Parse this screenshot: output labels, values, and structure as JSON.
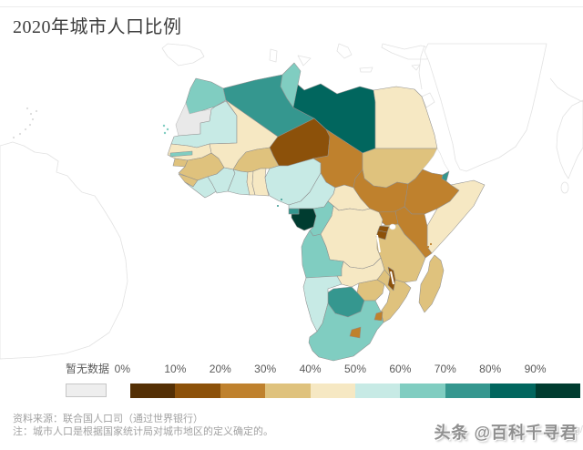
{
  "page": {
    "title": "2020年城市人口比例"
  },
  "legend": {
    "no_data_label": "暂无数据",
    "no_data_color": "#e9e9e9",
    "no_data_swatch_fill": "#eeeeee",
    "ticks": [
      "0%",
      "10%",
      "20%",
      "30%",
      "40%",
      "50%",
      "60%",
      "70%",
      "80%",
      "90%"
    ]
  },
  "footer": {
    "source": "资料来源：联合国人口司（通过世界银行）",
    "note": "注：城市人口是根据国家统计局对城市地区的定义确定的。"
  },
  "watermark": {
    "text": "头条 @百科千寻君",
    "fragment": "rg/"
  },
  "chart_data": {
    "type": "choropleth",
    "title": "2020年城市人口比例",
    "region": "Africa (world basemap, non-African countries unfilled)",
    "metric": "share of population living in urban areas, 2020",
    "legend_position": "bottom",
    "bins": [
      {
        "range": "0-10%",
        "color": "#543005"
      },
      {
        "range": "10-20%",
        "color": "#8c510a"
      },
      {
        "range": "20-30%",
        "color": "#bf812d"
      },
      {
        "range": "30-40%",
        "color": "#dfc27d"
      },
      {
        "range": "40-50%",
        "color": "#f6e8c3"
      },
      {
        "range": "50-60%",
        "color": "#c7eae5"
      },
      {
        "range": "60-70%",
        "color": "#80cdc1"
      },
      {
        "range": "70-80%",
        "color": "#35978f"
      },
      {
        "range": "80-90%",
        "color": "#01665e"
      },
      {
        "range": "90-100%",
        "color": "#003c30"
      }
    ],
    "countries": [
      {
        "name": "Morocco",
        "urban_share": "60-70%"
      },
      {
        "name": "Algeria",
        "urban_share": "70-80%"
      },
      {
        "name": "Tunisia",
        "urban_share": "60-70%"
      },
      {
        "name": "Libya",
        "urban_share": "80-90%"
      },
      {
        "name": "Egypt",
        "urban_share": "40-50%"
      },
      {
        "name": "Western Sahara",
        "urban_share": "no data"
      },
      {
        "name": "Mauritania",
        "urban_share": "50-60%"
      },
      {
        "name": "Mali",
        "urban_share": "40-50%"
      },
      {
        "name": "Niger",
        "urban_share": "10-20%"
      },
      {
        "name": "Chad",
        "urban_share": "20-30%"
      },
      {
        "name": "Sudan",
        "urban_share": "30-40%"
      },
      {
        "name": "Eritrea",
        "urban_share": "no data"
      },
      {
        "name": "Senegal",
        "urban_share": "40-50%"
      },
      {
        "name": "Gambia",
        "urban_share": "60-70%"
      },
      {
        "name": "Guinea-Bissau",
        "urban_share": "30-40%"
      },
      {
        "name": "Guinea",
        "urban_share": "30-40%"
      },
      {
        "name": "Sierra Leone",
        "urban_share": "30-40%"
      },
      {
        "name": "Liberia",
        "urban_share": "50-60%"
      },
      {
        "name": "Cote d'Ivoire",
        "urban_share": "50-60%"
      },
      {
        "name": "Burkina Faso",
        "urban_share": "30-40%"
      },
      {
        "name": "Ghana",
        "urban_share": "50-60%"
      },
      {
        "name": "Togo",
        "urban_share": "40-50%"
      },
      {
        "name": "Benin",
        "urban_share": "40-50%"
      },
      {
        "name": "Nigeria",
        "urban_share": "50-60%"
      },
      {
        "name": "Cameroon",
        "urban_share": "50-60%"
      },
      {
        "name": "Central African Republic",
        "urban_share": "40-50%"
      },
      {
        "name": "South Sudan",
        "urban_share": "20-30%"
      },
      {
        "name": "Ethiopia",
        "urban_share": "20-30%"
      },
      {
        "name": "Djibouti",
        "urban_share": "70-80%"
      },
      {
        "name": "Somalia",
        "urban_share": "40-50%"
      },
      {
        "name": "Kenya",
        "urban_share": "20-30%"
      },
      {
        "name": "Uganda",
        "urban_share": "20-30%"
      },
      {
        "name": "Rwanda",
        "urban_share": "10-20%"
      },
      {
        "name": "Burundi",
        "urban_share": "10-20%"
      },
      {
        "name": "Tanzania",
        "urban_share": "30-40%"
      },
      {
        "name": "DR Congo",
        "urban_share": "40-50%"
      },
      {
        "name": "Congo",
        "urban_share": "60-70%"
      },
      {
        "name": "Gabon",
        "urban_share": "90-100%"
      },
      {
        "name": "Equatorial Guinea",
        "urban_share": "70-80%"
      },
      {
        "name": "Angola",
        "urban_share": "60-70%"
      },
      {
        "name": "Zambia",
        "urban_share": "40-50%"
      },
      {
        "name": "Malawi",
        "urban_share": "10-20%"
      },
      {
        "name": "Mozambique",
        "urban_share": "30-40%"
      },
      {
        "name": "Zimbabwe",
        "urban_share": "30-40%"
      },
      {
        "name": "Botswana",
        "urban_share": "70-80%"
      },
      {
        "name": "Namibia",
        "urban_share": "50-60%"
      },
      {
        "name": "South Africa",
        "urban_share": "60-70%"
      },
      {
        "name": "Lesotho",
        "urban_share": "20-30%"
      },
      {
        "name": "Eswatini",
        "urban_share": "20-30%"
      },
      {
        "name": "Madagascar",
        "urban_share": "30-40%"
      },
      {
        "name": "Cape Verde",
        "urban_share": "60-70%"
      },
      {
        "name": "Comoros",
        "urban_share": "20-30%"
      },
      {
        "name": "Sao Tome and Principe",
        "urban_share": "70-80%"
      }
    ]
  }
}
